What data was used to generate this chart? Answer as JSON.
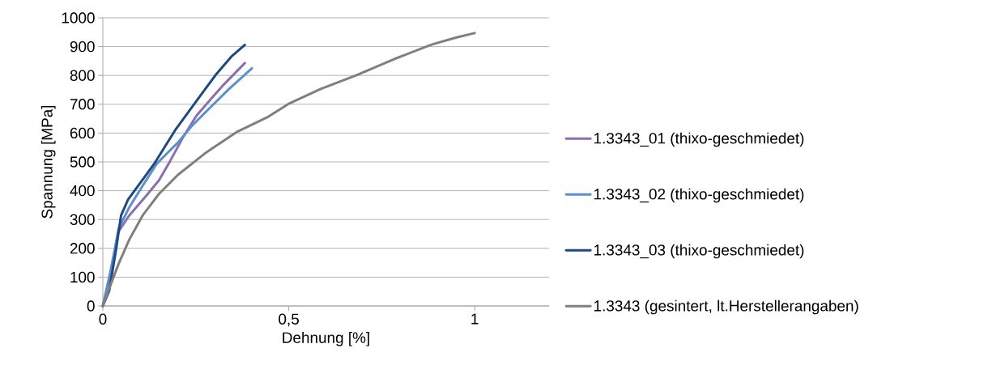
{
  "chart_data": {
    "type": "line",
    "xlabel": "Dehnung [%]",
    "ylabel": "Spannung [MPa]",
    "xlim": [
      0,
      1.2
    ],
    "ylim": [
      0,
      1000
    ],
    "xticks": [
      0,
      {
        "value": 0.5,
        "label": "0,5"
      },
      1
    ],
    "yticks": [
      0,
      100,
      200,
      300,
      400,
      500,
      600,
      700,
      800,
      900,
      1000
    ],
    "grid": "y",
    "legend": "right",
    "marker": "none",
    "line_style": "solid",
    "series": [
      {
        "name": "1.3343_01 (thixo-geschmiedet)",
        "color": "#8b6fad",
        "x": [
          0,
          0.02,
          0.042,
          0.071,
          0.115,
          0.151,
          0.18,
          0.216,
          0.252,
          0.296,
          0.325,
          0.382
        ],
        "values": [
          0,
          117,
          258,
          314,
          380,
          436,
          501,
          586,
          661,
          726,
          768,
          843
        ]
      },
      {
        "name": "1.3343_02 (thixo-geschmiedet)",
        "color": "#5b8fce",
        "x": [
          0,
          0.02,
          0.042,
          0.071,
          0.107,
          0.144,
          0.173,
          0.202,
          0.238,
          0.289,
          0.34,
          0.401
        ],
        "values": [
          0,
          108,
          267,
          342,
          417,
          492,
          530,
          567,
          623,
          689,
          754,
          825
        ]
      },
      {
        "name": "1.3343_03 (thixo-geschmiedet)",
        "color": "#1f497d",
        "x": [
          0,
          0.017,
          0.035,
          0.049,
          0.068,
          0.1,
          0.14,
          0.194,
          0.252,
          0.303,
          0.347,
          0.382
        ],
        "values": [
          0,
          52,
          192,
          314,
          370,
          426,
          497,
          609,
          712,
          801,
          867,
          906
        ]
      },
      {
        "name": "1.3343 (gesintert, lt.Herstellerangaben)",
        "color": "#7f7f7f",
        "x": [
          0,
          0.02,
          0.042,
          0.071,
          0.107,
          0.151,
          0.202,
          0.275,
          0.362,
          0.441,
          0.499,
          0.586,
          0.681,
          0.782,
          0.884,
          0.949,
          1.0
        ],
        "values": [
          0,
          70,
          145,
          230,
          314,
          389,
          455,
          530,
          605,
          654,
          701,
          753,
          800,
          856,
          907,
          931,
          947
        ]
      }
    ]
  }
}
